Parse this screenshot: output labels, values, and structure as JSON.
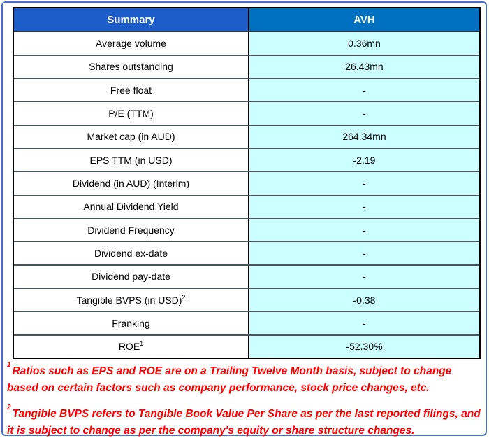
{
  "table": {
    "header": {
      "left": "Summary",
      "right": "AVH"
    },
    "rows": [
      {
        "label": "Average volume",
        "sup": "",
        "value": "0.36mn"
      },
      {
        "label": "Shares outstanding",
        "sup": "",
        "value": "26.43mn"
      },
      {
        "label": "Free float",
        "sup": "",
        "value": "-"
      },
      {
        "label": "P/E (TTM)",
        "sup": "",
        "value": "-"
      },
      {
        "label": "Market cap (in AUD)",
        "sup": "",
        "value": "264.34mn"
      },
      {
        "label": "EPS TTM (in USD)",
        "sup": "",
        "value": "-2.19"
      },
      {
        "label": "Dividend (in AUD) (Interim)",
        "sup": "",
        "value": "-"
      },
      {
        "label": "Annual Dividend Yield",
        "sup": "",
        "value": "-"
      },
      {
        "label": "Dividend Frequency",
        "sup": "",
        "value": "-"
      },
      {
        "label": "Dividend ex-date",
        "sup": "",
        "value": "-"
      },
      {
        "label": "Dividend pay-date",
        "sup": "",
        "value": "-"
      },
      {
        "label": "Tangible BVPS (in USD)",
        "sup": "2",
        "value": "-0.38"
      },
      {
        "label": "Franking",
        "sup": "",
        "value": "-"
      },
      {
        "label": "ROE",
        "sup": "1",
        "value": "-52.30%"
      }
    ]
  },
  "footnotes": [
    {
      "sup": "1",
      "text": "Ratios such as EPS and ROE are on a Trailing Twelve Month basis, subject to change based on certain factors such as company performance, stock price changes, etc."
    },
    {
      "sup": "2",
      "text": "Tangible BVPS refers to Tangible Book Value Per Share as per the last reported filings, and it is subject to change as per the company's equity or share structure changes."
    }
  ],
  "colors": {
    "header_left_bg": "#1d5dc9",
    "header_right_bg": "#0070c0",
    "value_column_bg": "#ccffff",
    "outer_border": "#4472c4",
    "table_border": "#000000",
    "row_divider": "#4a545b",
    "footnote_text": "#ff0000"
  }
}
